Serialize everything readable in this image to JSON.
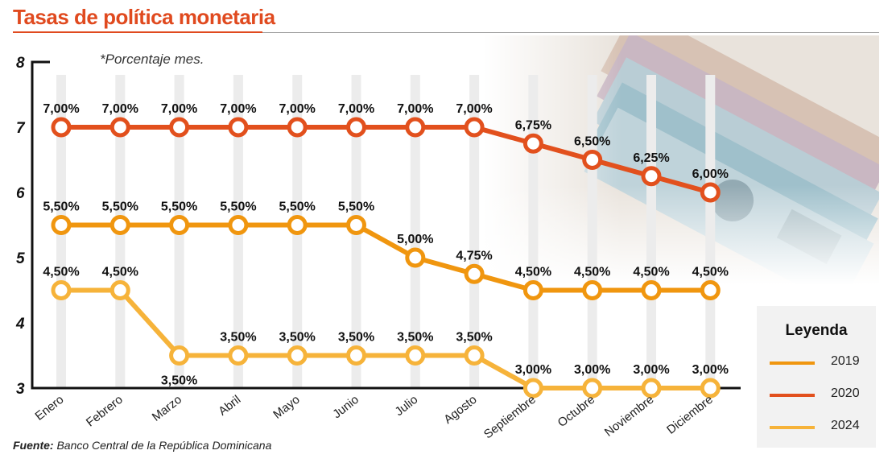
{
  "title": "Tasas de política monetaria",
  "note": "*Porcentaje mes.",
  "source_label": "Fuente:",
  "source_text": " Banco Central de la República Dominicana",
  "legend_title": "Leyenda",
  "colors": {
    "2019": "#f0960f",
    "2020": "#e2501d",
    "2024": "#f6b33a"
  },
  "chart_data": {
    "type": "line",
    "title": "Tasas de política monetaria",
    "categories": [
      "Enero",
      "Febrero",
      "Marzo",
      "Abril",
      "Mayo",
      "Junio",
      "Julio",
      "Agosto",
      "Septiembre",
      "Octubre",
      "Noviembre",
      "Diciembre"
    ],
    "yticks": [
      "3",
      "4",
      "5",
      "6",
      "7",
      "8"
    ],
    "ylim": [
      3,
      8
    ],
    "grid": false,
    "legend_position": "bottom-right",
    "series": [
      {
        "name": "2020",
        "values": [
          7.0,
          7.0,
          7.0,
          7.0,
          7.0,
          7.0,
          7.0,
          7.0,
          6.75,
          6.5,
          6.25,
          6.0
        ],
        "labels": [
          "7,00%",
          "7,00%",
          "7,00%",
          "7,00%",
          "7,00%",
          "7,00%",
          "7,00%",
          "7,00%",
          "6,75%",
          "6,50%",
          "6,25%",
          "6,00%"
        ]
      },
      {
        "name": "2019",
        "values": [
          5.5,
          5.5,
          5.5,
          5.5,
          5.5,
          5.5,
          5.0,
          4.75,
          4.5,
          4.5,
          4.5,
          4.5
        ],
        "labels": [
          "5,50%",
          "5,50%",
          "5,50%",
          "5,50%",
          "5,50%",
          "5,50%",
          "5,00%",
          "4,75%",
          "4,50%",
          "4,50%",
          "4,50%",
          "4,50%"
        ]
      },
      {
        "name": "2024",
        "values": [
          4.5,
          4.5,
          3.5,
          3.5,
          3.5,
          3.5,
          3.5,
          3.5,
          3.0,
          3.0,
          3.0,
          3.0
        ],
        "labels": [
          "4,50%",
          "4,50%",
          "3,50%",
          "3,50%",
          "3,50%",
          "3,50%",
          "3,50%",
          "3,50%",
          "3,00%",
          "3,00%",
          "3,00%",
          "3,00%"
        ]
      }
    ]
  }
}
